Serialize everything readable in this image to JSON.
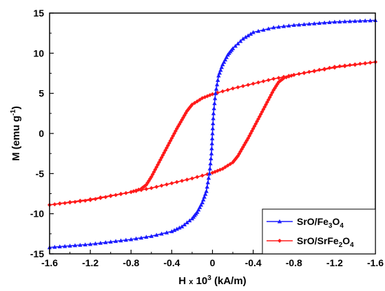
{
  "chart_data": {
    "type": "line",
    "title": "",
    "xlabel": "H x 10^3 (kA/m)",
    "ylabel": "M (emu g^-1)",
    "xlim": [
      -1.6,
      1.6
    ],
    "ylim": [
      -15,
      15
    ],
    "x_tick_labels": [
      "-1.6",
      "-1.2",
      "-0.8",
      "-0.4",
      "0",
      "-0.4",
      "-0.8",
      "-1.2",
      "-1.6"
    ],
    "y_ticks": [
      -15,
      -10,
      -5,
      0,
      5,
      10,
      15
    ],
    "grid": false,
    "legend_position": "bottom-right",
    "series": [
      {
        "name": "SrO/Fe3O4",
        "color": "#1a1aff",
        "marker": "triangle",
        "x": [
          -1.6,
          -1.4,
          -1.2,
          -1.0,
          -0.8,
          -0.6,
          -0.4,
          -0.3,
          -0.2,
          -0.15,
          -0.1,
          -0.06,
          -0.03,
          -0.01,
          0.0,
          0.01,
          0.03,
          0.06,
          0.1,
          0.15,
          0.2,
          0.3,
          0.4,
          0.6,
          0.8,
          1.0,
          1.2,
          1.4,
          1.6
        ],
        "y": [
          -14.2,
          -14.0,
          -13.8,
          -13.5,
          -13.2,
          -12.8,
          -12.2,
          -11.6,
          -10.6,
          -9.8,
          -8.6,
          -7.2,
          -5.0,
          -2.5,
          0.0,
          2.5,
          5.0,
          7.2,
          8.6,
          9.8,
          10.6,
          11.8,
          12.6,
          13.2,
          13.5,
          13.7,
          13.9,
          14.0,
          14.1
        ]
      },
      {
        "name": "SrO/SrFe2O4",
        "color": "#ff1a1a",
        "marker": "diamond",
        "branches": [
          {
            "x": [
              1.6,
              1.2,
              0.8,
              0.6,
              0.4,
              0.2,
              0.0,
              -0.1,
              -0.2,
              -0.25,
              -0.3,
              -0.35,
              -0.4,
              -0.45,
              -0.5,
              -0.55,
              -0.6,
              -0.65,
              -0.7,
              -0.8,
              -1.0,
              -1.2,
              -1.4,
              -1.6
            ],
            "y": [
              8.9,
              8.2,
              7.3,
              6.8,
              6.2,
              5.6,
              4.9,
              4.4,
              3.6,
              2.8,
              1.7,
              0.6,
              -0.6,
              -1.8,
              -3.0,
              -4.2,
              -5.4,
              -6.4,
              -6.9,
              -7.3,
              -7.8,
              -8.3,
              -8.6,
              -8.9
            ]
          },
          {
            "x": [
              -1.6,
              -1.2,
              -0.8,
              -0.6,
              -0.4,
              -0.2,
              0.0,
              0.1,
              0.2,
              0.25,
              0.3,
              0.35,
              0.4,
              0.45,
              0.5,
              0.55,
              0.6,
              0.65,
              0.7,
              0.8,
              1.0,
              1.2,
              1.4,
              1.6
            ],
            "y": [
              -8.9,
              -8.2,
              -7.3,
              -6.8,
              -6.2,
              -5.6,
              -4.9,
              -4.4,
              -3.6,
              -2.8,
              -1.7,
              -0.6,
              0.6,
              1.8,
              3.0,
              4.2,
              5.4,
              6.4,
              6.9,
              7.3,
              7.8,
              8.3,
              8.6,
              8.9
            ]
          }
        ]
      }
    ]
  }
}
